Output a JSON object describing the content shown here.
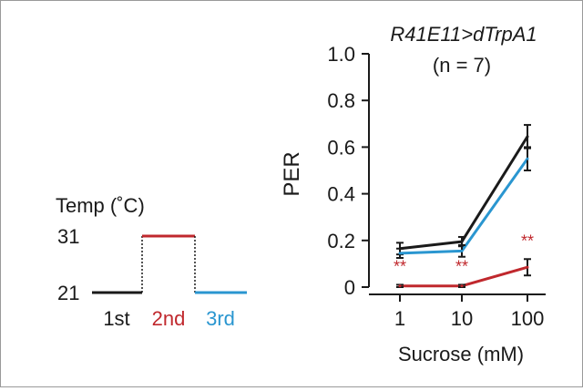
{
  "colors": {
    "black": "#1a1a1a",
    "red": "#c0282d",
    "blue": "#2a96d0"
  },
  "protocol": {
    "title": "Temp (˚C)",
    "high_label": "31",
    "low_label": "21",
    "phases": [
      {
        "label": "1st",
        "temp": 21,
        "color": "#1a1a1a"
      },
      {
        "label": "2nd",
        "temp": 31,
        "color": "#c0282d"
      },
      {
        "label": "3rd",
        "temp": 21,
        "color": "#2a96d0"
      }
    ]
  },
  "chart_data": {
    "type": "line",
    "title": "R41E11>dTrpA1",
    "subtitle": "(n = 7)",
    "xlabel": "Sucrose (mM)",
    "ylabel": "PER",
    "categories": [
      "1",
      "10",
      "100"
    ],
    "ylim": [
      0,
      1.0
    ],
    "yticks": [
      "0",
      "0.2",
      "0.4",
      "0.6",
      "0.8",
      "1.0"
    ],
    "grid": false,
    "series": [
      {
        "color": "#1a1a1a",
        "values": [
          0.165,
          0.195,
          0.645
        ],
        "errors": [
          0.025,
          0.02,
          0.05
        ]
      },
      {
        "color": "#2a96d0",
        "values": [
          0.145,
          0.155,
          0.55
        ],
        "errors": [
          0.02,
          0.025,
          0.05
        ]
      },
      {
        "color": "#c0282d",
        "values": [
          0.005,
          0.005,
          0.085
        ],
        "errors": [
          0.005,
          0.005,
          0.035
        ]
      }
    ],
    "annotations": [
      {
        "category": "1",
        "text": "**",
        "color": "#c0282d"
      },
      {
        "category": "10",
        "text": "**",
        "color": "#c0282d"
      },
      {
        "category": "100",
        "text": "**",
        "color": "#c0282d"
      }
    ]
  }
}
